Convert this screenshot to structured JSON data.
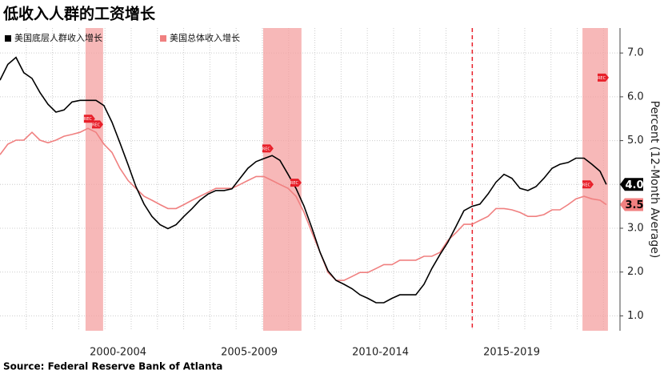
{
  "chart_data": {
    "type": "line",
    "title": "低收入人群的工资增长",
    "source": "Source: Federal Reserve Bank of Atlanta",
    "y_axis_label": "Percent (12-Month Average)",
    "x": [
      1998.0,
      1998.3,
      1998.61,
      1998.91,
      1999.22,
      1999.52,
      1999.83,
      2000.13,
      2000.44,
      2000.74,
      2001.05,
      2001.35,
      2001.66,
      2001.96,
      2002.27,
      2002.57,
      2002.88,
      2003.18,
      2003.49,
      2003.79,
      2004.1,
      2004.4,
      2004.71,
      2005.01,
      2005.32,
      2005.62,
      2005.93,
      2006.23,
      2006.54,
      2006.84,
      2007.15,
      2007.45,
      2007.76,
      2008.06,
      2008.37,
      2008.67,
      2008.98,
      2009.28,
      2009.59,
      2009.89,
      2010.2,
      2010.5,
      2010.81,
      2011.11,
      2011.42,
      2011.72,
      2012.02,
      2012.33,
      2012.63,
      2012.94,
      2013.24,
      2013.55,
      2013.85,
      2014.16,
      2014.46,
      2014.77,
      2015.07,
      2015.38,
      2015.68,
      2015.99,
      2016.29,
      2016.6,
      2016.9,
      2017.21,
      2017.51,
      2017.82,
      2018.12,
      2018.43,
      2018.73,
      2019.04,
      2019.34,
      2019.65,
      2019.95,
      2020.26,
      2020.56,
      2020.87,
      2021.11
    ],
    "series": [
      {
        "name": "美国底层人群收入增长",
        "color": "#000000",
        "end_label": "4.0",
        "values": [
          6.38,
          6.74,
          6.9,
          6.55,
          6.42,
          6.1,
          5.83,
          5.65,
          5.7,
          5.88,
          5.92,
          5.92,
          5.92,
          5.8,
          5.42,
          4.95,
          4.45,
          3.95,
          3.55,
          3.27,
          3.08,
          2.99,
          3.08,
          3.27,
          3.45,
          3.64,
          3.78,
          3.86,
          3.86,
          3.9,
          4.14,
          4.37,
          4.52,
          4.59,
          4.66,
          4.55,
          4.23,
          3.91,
          3.5,
          3.0,
          2.45,
          2.03,
          1.81,
          1.72,
          1.62,
          1.48,
          1.4,
          1.3,
          1.3,
          1.4,
          1.48,
          1.48,
          1.48,
          1.72,
          2.08,
          2.4,
          2.68,
          3.04,
          3.4,
          3.5,
          3.55,
          3.78,
          4.05,
          4.23,
          4.14,
          3.91,
          3.86,
          3.95,
          4.14,
          4.37,
          4.46,
          4.5,
          4.6,
          4.6,
          4.46,
          4.3,
          4.0
        ]
      },
      {
        "name": "美国总体收入增长",
        "color": "#f08080",
        "end_label": "3.5",
        "values": [
          4.68,
          4.92,
          5.01,
          5.01,
          5.19,
          5.01,
          4.95,
          5.01,
          5.1,
          5.14,
          5.19,
          5.28,
          5.19,
          4.92,
          4.73,
          4.37,
          4.09,
          3.91,
          3.73,
          3.64,
          3.54,
          3.45,
          3.45,
          3.54,
          3.64,
          3.73,
          3.82,
          3.91,
          3.91,
          3.91,
          4.0,
          4.09,
          4.18,
          4.18,
          4.09,
          4.0,
          3.91,
          3.73,
          3.36,
          2.9,
          2.45,
          1.99,
          1.81,
          1.81,
          1.9,
          1.99,
          1.99,
          2.08,
          2.17,
          2.17,
          2.27,
          2.27,
          2.27,
          2.36,
          2.36,
          2.45,
          2.72,
          2.9,
          3.09,
          3.09,
          3.18,
          3.27,
          3.45,
          3.45,
          3.42,
          3.36,
          3.27,
          3.27,
          3.31,
          3.42,
          3.42,
          3.54,
          3.67,
          3.73,
          3.67,
          3.64,
          3.54
        ]
      }
    ],
    "xlim": [
      1998,
      2021.63
    ],
    "ylim": [
      0.66,
      7.57
    ],
    "yticks": [
      {
        "value": 1,
        "label": "1.0"
      },
      {
        "value": 2,
        "label": "2.0"
      },
      {
        "value": 3,
        "label": "3.0"
      },
      {
        "value": 4,
        "label": "4.0"
      },
      {
        "value": 5,
        "label": "5.0"
      },
      {
        "value": 6,
        "label": "6.0"
      },
      {
        "value": 7,
        "label": "7.0"
      }
    ],
    "xticks": [
      {
        "value": 2002.5,
        "label": "2000-2004"
      },
      {
        "value": 2007.5,
        "label": "2005-2009"
      },
      {
        "value": 2012.5,
        "label": "2010-2014"
      },
      {
        "value": 2017.5,
        "label": "2015-2019"
      }
    ],
    "xgrid": [
      1999,
      2000,
      2001,
      2002,
      2003,
      2004,
      2005,
      2006,
      2007,
      2008,
      2009,
      2010,
      2011,
      2012,
      2013,
      2014,
      2015,
      2016,
      2017,
      2018,
      2019,
      2020,
      2021
    ],
    "grid": true,
    "recessions": [
      [
        2001.26,
        2001.93
      ],
      [
        2008.03,
        2009.49
      ],
      [
        2020.2,
        2021.17
      ]
    ],
    "recession_color": "#f4a0a0",
    "vline": 2016.0,
    "vline_color": "#e8202a",
    "marker_label": "REC",
    "markers": [
      {
        "x": 2001.41,
        "y": 5.5
      },
      {
        "x": 2001.72,
        "y": 5.37
      },
      {
        "x": 2008.21,
        "y": 4.82
      },
      {
        "x": 2009.28,
        "y": 4.04
      },
      {
        "x": 2020.41,
        "y": 4.0
      },
      {
        "x": 2020.99,
        "y": 6.44
      }
    ]
  }
}
